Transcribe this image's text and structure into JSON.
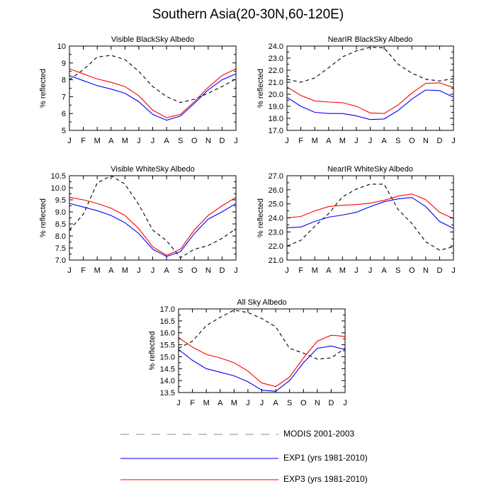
{
  "title": "Southern Asia(20-30N,60-120E)",
  "legend": [
    {
      "label": "MODIS 2001-2003",
      "color": "#000000",
      "style": "dashed"
    },
    {
      "label": "EXP1 (yrs 1981-2010)",
      "color": "#0000ff",
      "style": "solid"
    },
    {
      "label": "EXP3 (yrs 1981-2010)",
      "color": "#ff0000",
      "style": "solid"
    }
  ],
  "chart_data": [
    {
      "type": "line",
      "title": "Visible BlackSky Albedo",
      "ylabel": "% reflected",
      "categories": [
        "J",
        "F",
        "M",
        "A",
        "M",
        "J",
        "J",
        "A",
        "S",
        "O",
        "N",
        "D",
        "J"
      ],
      "ylim": [
        5,
        10
      ],
      "yticks": [
        "5",
        "6",
        "7",
        "8",
        "9",
        "10"
      ],
      "series": [
        {
          "name": "MODIS 2001-2003",
          "values": [
            8.0,
            8.6,
            9.35,
            9.45,
            9.2,
            8.5,
            7.6,
            7.0,
            6.65,
            6.85,
            7.2,
            7.6,
            8.05
          ]
        },
        {
          "name": "EXP1 (yrs 1981-2010)",
          "values": [
            8.25,
            7.95,
            7.65,
            7.45,
            7.2,
            6.7,
            5.95,
            5.6,
            5.85,
            6.6,
            7.4,
            8.0,
            8.35
          ]
        },
        {
          "name": "EXP3 (yrs 1981-2010)",
          "values": [
            8.65,
            8.35,
            8.05,
            7.85,
            7.6,
            7.05,
            6.2,
            5.75,
            5.95,
            6.7,
            7.55,
            8.25,
            8.65
          ]
        }
      ]
    },
    {
      "type": "line",
      "title": "NearIR BlackSky Albedo",
      "ylabel": "% reflected",
      "categories": [
        "J",
        "F",
        "M",
        "A",
        "M",
        "J",
        "J",
        "A",
        "S",
        "O",
        "N",
        "D",
        "J"
      ],
      "ylim": [
        17.0,
        24.0
      ],
      "yticks": [
        "17.0",
        "18.0",
        "19.0",
        "20.0",
        "21.0",
        "22.0",
        "23.0",
        "24.0"
      ],
      "series": [
        {
          "name": "MODIS 2001-2003",
          "values": [
            21.25,
            21.0,
            21.35,
            22.2,
            23.1,
            23.6,
            23.9,
            23.85,
            22.5,
            21.75,
            21.25,
            21.1,
            21.3
          ]
        },
        {
          "name": "EXP1 (yrs 1981-2010)",
          "values": [
            19.75,
            19.0,
            18.5,
            18.4,
            18.4,
            18.2,
            17.9,
            17.95,
            18.65,
            19.6,
            20.35,
            20.3,
            19.75
          ]
        },
        {
          "name": "EXP3 (yrs 1981-2010)",
          "values": [
            20.6,
            19.9,
            19.45,
            19.35,
            19.3,
            19.0,
            18.45,
            18.4,
            19.1,
            20.1,
            20.9,
            20.95,
            20.55
          ]
        }
      ]
    },
    {
      "type": "line",
      "title": "Visible WhiteSky Albedo",
      "ylabel": "% reflected",
      "categories": [
        "J",
        "F",
        "M",
        "A",
        "M",
        "J",
        "J",
        "A",
        "S",
        "O",
        "N",
        "D",
        "J"
      ],
      "ylim": [
        7.0,
        10.5
      ],
      "yticks": [
        "7.0",
        "7.5",
        "8.0",
        "8.5",
        "9.0",
        "9.5",
        "10.0",
        "10.5"
      ],
      "series": [
        {
          "name": "MODIS 2001-2003",
          "values": [
            8.25,
            8.9,
            10.2,
            10.5,
            10.15,
            9.3,
            8.25,
            7.8,
            7.1,
            7.45,
            7.6,
            7.9,
            8.3
          ]
        },
        {
          "name": "EXP1 (yrs 1981-2010)",
          "values": [
            9.35,
            9.2,
            9.05,
            8.85,
            8.55,
            8.1,
            7.45,
            7.15,
            7.35,
            8.1,
            8.7,
            9.0,
            9.35
          ]
        },
        {
          "name": "EXP3 (yrs 1981-2010)",
          "values": [
            9.6,
            9.5,
            9.35,
            9.15,
            8.85,
            8.3,
            7.55,
            7.2,
            7.45,
            8.25,
            8.85,
            9.25,
            9.6
          ]
        }
      ]
    },
    {
      "type": "line",
      "title": "NearIR WhiteSky Albedo",
      "ylabel": "% reflected",
      "categories": [
        "J",
        "F",
        "M",
        "A",
        "M",
        "J",
        "J",
        "A",
        "S",
        "O",
        "N",
        "D",
        "J"
      ],
      "ylim": [
        21.0,
        27.0
      ],
      "yticks": [
        "21.0",
        "22.0",
        "23.0",
        "24.0",
        "25.0",
        "26.0",
        "27.0"
      ],
      "series": [
        {
          "name": "MODIS 2001-2003",
          "values": [
            22.0,
            22.4,
            23.4,
            24.3,
            25.5,
            26.05,
            26.4,
            26.4,
            24.6,
            23.6,
            22.3,
            21.7,
            21.95
          ]
        },
        {
          "name": "EXP1 (yrs 1981-2010)",
          "values": [
            23.3,
            23.35,
            23.75,
            24.05,
            24.2,
            24.4,
            24.8,
            25.15,
            25.35,
            25.45,
            24.8,
            23.75,
            23.25
          ]
        },
        {
          "name": "EXP3 (yrs 1981-2010)",
          "values": [
            24.0,
            24.1,
            24.5,
            24.8,
            24.9,
            24.95,
            25.05,
            25.25,
            25.55,
            25.7,
            25.3,
            24.4,
            23.95
          ]
        }
      ]
    },
    {
      "type": "line",
      "title": "All Sky Albedo",
      "ylabel": "% reflected",
      "categories": [
        "J",
        "F",
        "M",
        "A",
        "M",
        "J",
        "J",
        "A",
        "S",
        "O",
        "N",
        "D",
        "J"
      ],
      "ylim": [
        13.5,
        17.0
      ],
      "yticks": [
        "13.5",
        "14.0",
        "14.5",
        "15.0",
        "15.5",
        "16.0",
        "16.5",
        "17.0"
      ],
      "series": [
        {
          "name": "MODIS 2001-2003",
          "values": [
            15.35,
            15.65,
            16.3,
            16.65,
            16.95,
            16.85,
            16.6,
            16.25,
            15.35,
            15.15,
            14.9,
            14.95,
            15.35
          ]
        },
        {
          "name": "EXP1 (yrs 1981-2010)",
          "values": [
            15.3,
            14.85,
            14.5,
            14.35,
            14.2,
            13.95,
            13.6,
            13.55,
            14.0,
            14.75,
            15.35,
            15.45,
            15.3
          ]
        },
        {
          "name": "EXP3 (yrs 1981-2010)",
          "values": [
            15.8,
            15.4,
            15.1,
            14.95,
            14.75,
            14.4,
            13.9,
            13.75,
            14.15,
            14.95,
            15.65,
            15.9,
            15.85
          ]
        }
      ]
    }
  ]
}
